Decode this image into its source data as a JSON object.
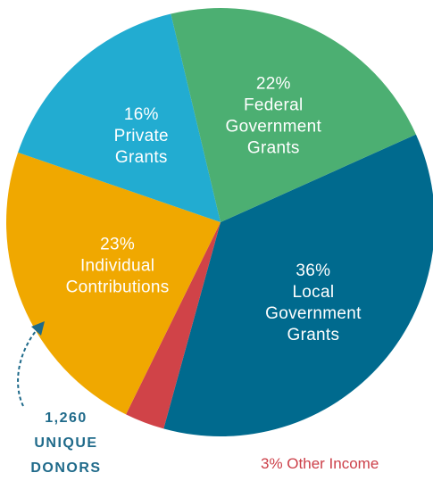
{
  "chart_data": {
    "type": "pie",
    "slices": [
      {
        "label_lines": [
          "36%",
          "Local",
          "Government",
          "Grants"
        ],
        "value": 36,
        "color": "#006a8e"
      },
      {
        "label_lines": [],
        "value": 3,
        "color": "#d04348"
      },
      {
        "label_lines": [
          "23%",
          "Individual",
          "Contributions"
        ],
        "value": 23,
        "color": "#f0a800"
      },
      {
        "label_lines": [
          "16%",
          "Private",
          "Grants"
        ],
        "value": 16,
        "color": "#22acd1"
      },
      {
        "label_lines": [
          "22%",
          "Federal",
          "Government",
          "Grants"
        ],
        "value": 22,
        "color": "#4caf72"
      }
    ],
    "other_income_label": "3% Other Income",
    "other_income_color": "#cc3f48",
    "annotation": {
      "lines": [
        "1,260",
        "UNIQUE",
        "DONORS"
      ],
      "color": "#1f6a8a",
      "arrow_icon": "curved-arrow-icon"
    }
  }
}
